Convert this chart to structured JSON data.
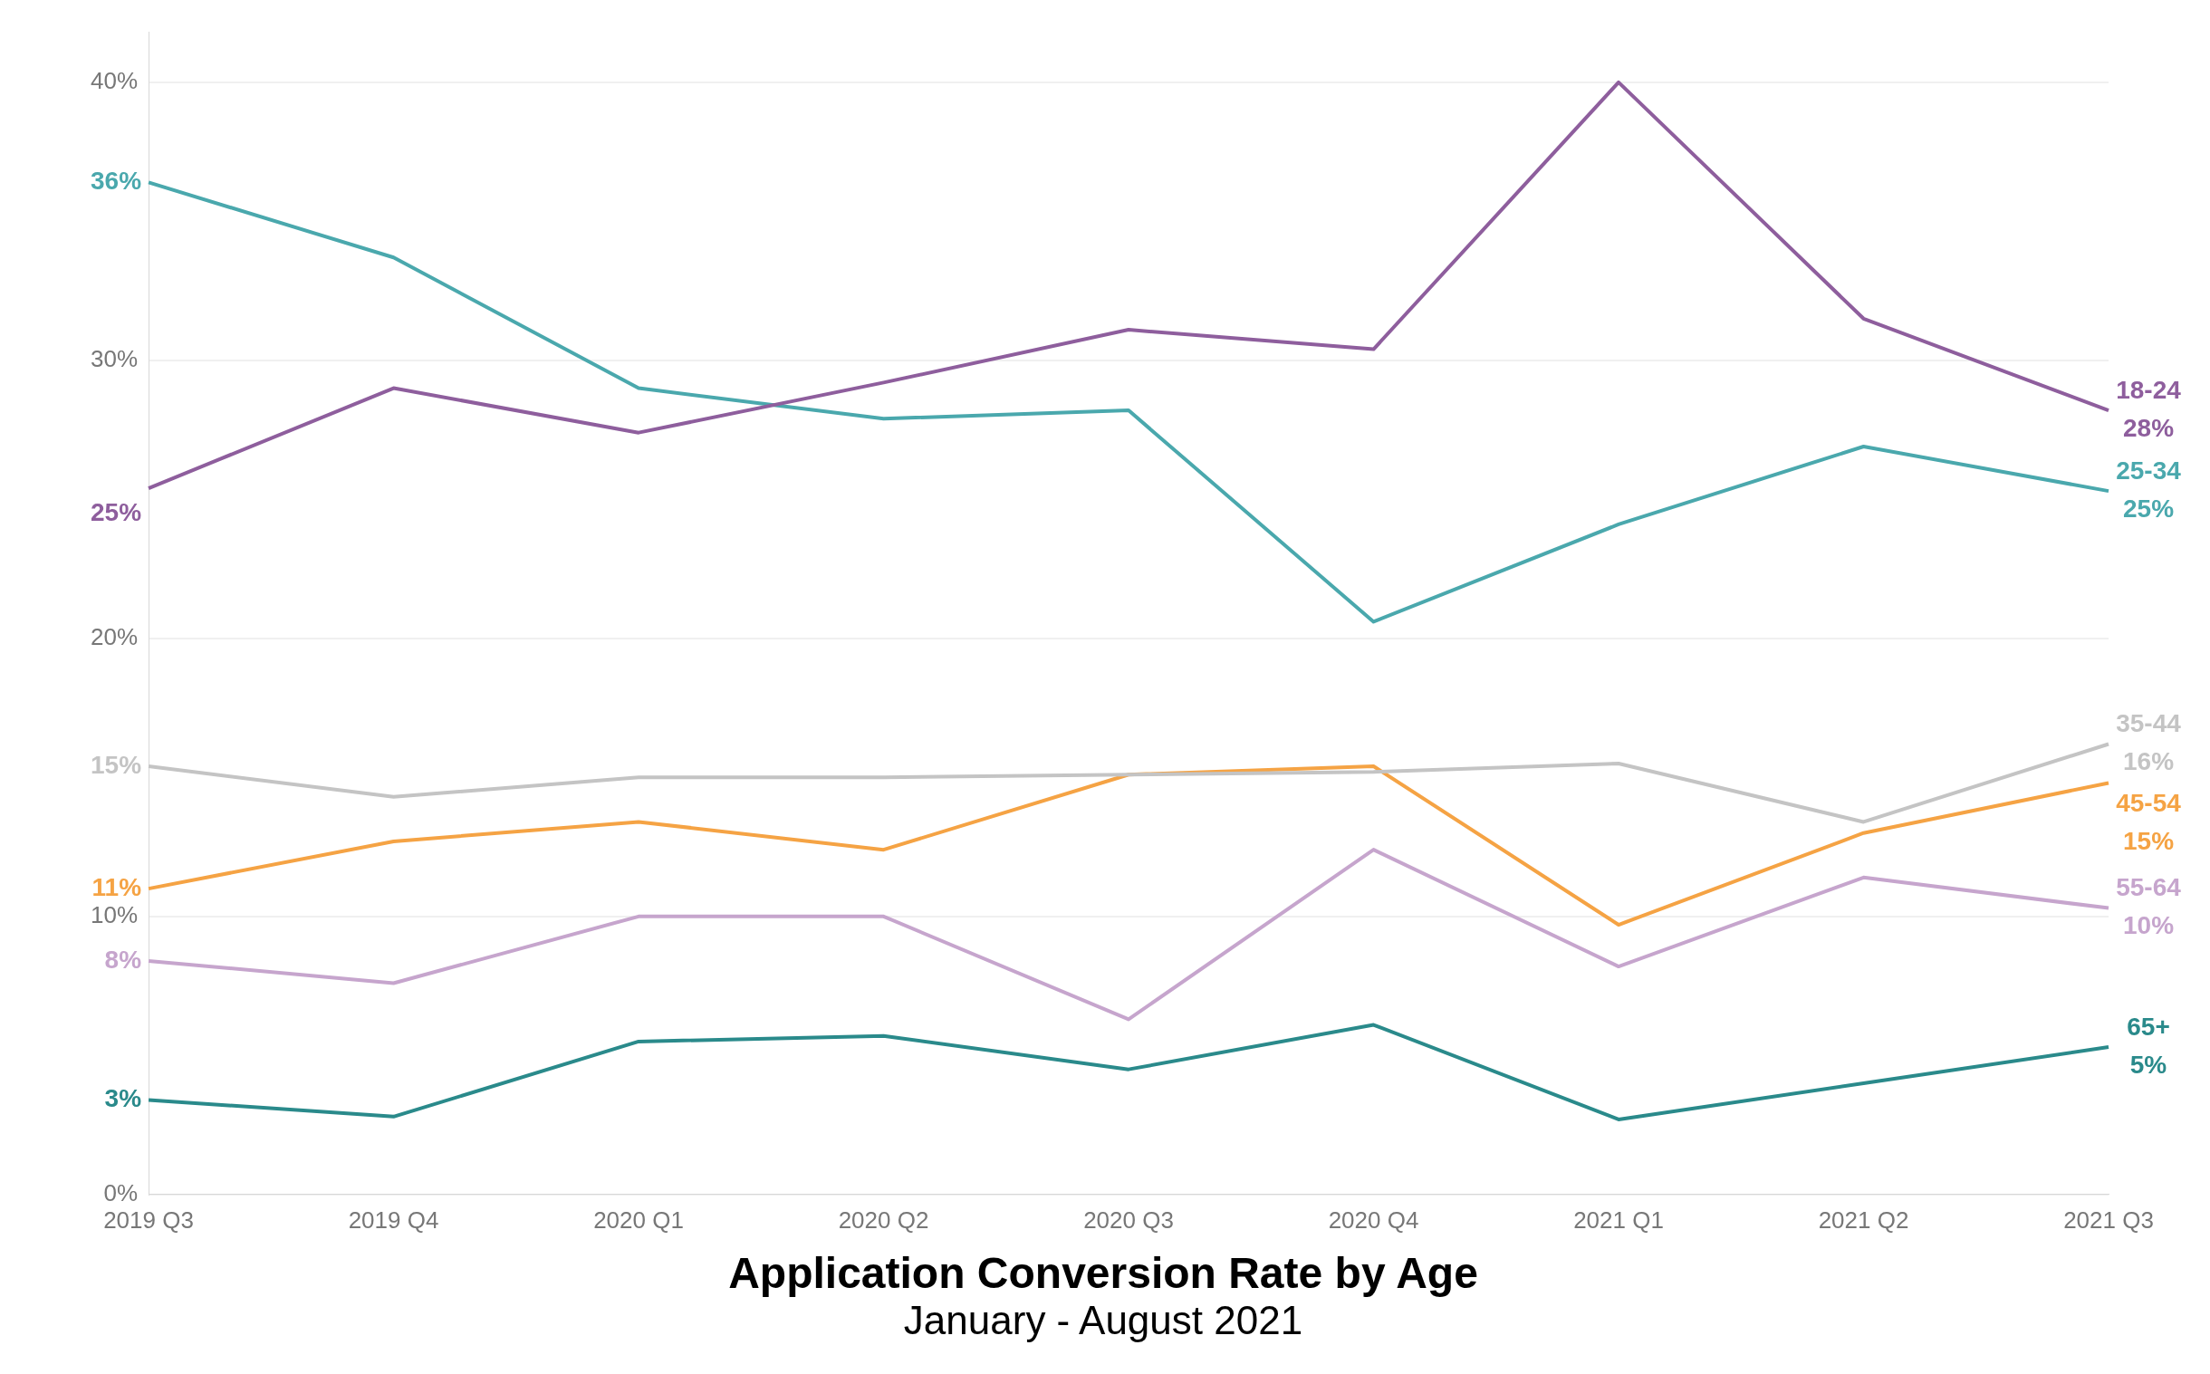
{
  "chart_data": {
    "type": "line",
    "title": "Application Conversion Rate by Age",
    "subtitle": "January - August 2021",
    "categories": [
      "2019 Q3",
      "2019 Q4",
      "2020 Q1",
      "2020 Q2",
      "2020 Q3",
      "2020 Q4",
      "2021 Q1",
      "2021 Q2",
      "2021 Q3"
    ],
    "series": [
      {
        "name": "18-24",
        "color": "#8e5e9d",
        "values": [
          25.4,
          29.0,
          27.4,
          29.2,
          31.1,
          30.4,
          40.0,
          31.5,
          28.2
        ],
        "value_labels": [
          "25%",
          null,
          null,
          null,
          null,
          null,
          null,
          null,
          "28%"
        ]
      },
      {
        "name": "25-34",
        "color": "#4aa8ad",
        "values": [
          36.4,
          33.7,
          29.0,
          27.9,
          28.2,
          20.6,
          24.1,
          26.9,
          25.3
        ],
        "value_labels": [
          "36%",
          null,
          null,
          null,
          null,
          null,
          null,
          null,
          "25%"
        ]
      },
      {
        "name": "35-44",
        "color": "#c4c4c4",
        "values": [
          15.4,
          14.3,
          15.0,
          15.0,
          15.1,
          15.2,
          15.5,
          13.4,
          16.2
        ],
        "value_labels": [
          "15%",
          null,
          null,
          null,
          null,
          null,
          null,
          null,
          "16%"
        ]
      },
      {
        "name": "45-54",
        "color": "#f5a344",
        "values": [
          11.0,
          12.7,
          13.4,
          12.4,
          15.1,
          15.4,
          9.7,
          13.0,
          14.8
        ],
        "value_labels": [
          "11%",
          null,
          null,
          null,
          null,
          null,
          null,
          null,
          "15%"
        ]
      },
      {
        "name": "55-64",
        "color": "#c6a5cd",
        "values": [
          8.4,
          7.6,
          10.0,
          10.0,
          6.3,
          12.4,
          8.2,
          11.4,
          10.3
        ],
        "value_labels": [
          "8%",
          null,
          null,
          null,
          null,
          null,
          null,
          null,
          "10%"
        ]
      },
      {
        "name": "65+",
        "color": "#2a8a8b",
        "values": [
          3.4,
          2.8,
          5.5,
          5.7,
          4.5,
          6.1,
          2.7,
          4.0,
          5.3
        ],
        "value_labels": [
          "3%",
          null,
          null,
          null,
          null,
          null,
          null,
          null,
          "5%"
        ]
      }
    ],
    "ylim": [
      0,
      41.8
    ],
    "yticks": [
      {
        "value": 0,
        "label": "0%"
      },
      {
        "value": 10,
        "label": "10%"
      },
      {
        "value": 20,
        "label": "20%"
      },
      {
        "value": 30,
        "label": "30%"
      },
      {
        "value": 40,
        "label": "40%"
      }
    ],
    "grid": "y",
    "legend": false,
    "marker": "none",
    "line_style": "solid"
  }
}
